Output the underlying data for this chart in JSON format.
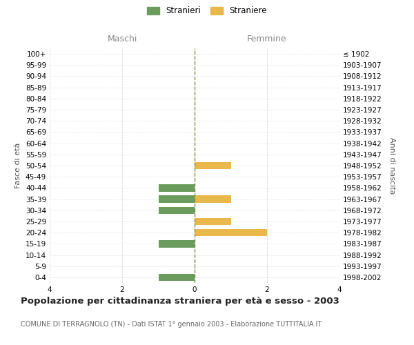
{
  "age_groups": [
    "100+",
    "95-99",
    "90-94",
    "85-89",
    "80-84",
    "75-79",
    "70-74",
    "65-69",
    "60-64",
    "55-59",
    "50-54",
    "45-49",
    "40-44",
    "35-39",
    "30-34",
    "25-29",
    "20-24",
    "15-19",
    "10-14",
    "5-9",
    "0-4"
  ],
  "birth_years": [
    "≤ 1902",
    "1903-1907",
    "1908-1912",
    "1913-1917",
    "1918-1922",
    "1923-1927",
    "1928-1932",
    "1933-1937",
    "1938-1942",
    "1943-1947",
    "1948-1952",
    "1953-1957",
    "1958-1962",
    "1963-1967",
    "1968-1972",
    "1973-1977",
    "1978-1982",
    "1983-1987",
    "1988-1992",
    "1993-1997",
    "1998-2002"
  ],
  "maschi": [
    0,
    0,
    0,
    0,
    0,
    0,
    0,
    0,
    0,
    0,
    0,
    0,
    1,
    1,
    1,
    0,
    0,
    1,
    0,
    0,
    1
  ],
  "femmine": [
    0,
    0,
    0,
    0,
    0,
    0,
    0,
    0,
    0,
    0,
    1,
    0,
    0,
    1,
    0,
    1,
    2,
    0,
    0,
    0,
    0
  ],
  "color_maschi": "#6b9c5e",
  "color_femmine": "#e8b84b",
  "title": "Popolazione per cittadinanza straniera per età e sesso - 2003",
  "subtitle": "COMUNE DI TERRAGNOLO (TN) - Dati ISTAT 1° gennaio 2003 - Elaborazione TUTTITALIA.IT",
  "xlabel_left": "Maschi",
  "xlabel_right": "Femmine",
  "ylabel_left": "Fasce di età",
  "ylabel_right": "Anni di nascita",
  "legend_stranieri": "Stranieri",
  "legend_straniere": "Straniere",
  "xlim": 4,
  "background_color": "#ffffff",
  "grid_color": "#d0d0d0"
}
